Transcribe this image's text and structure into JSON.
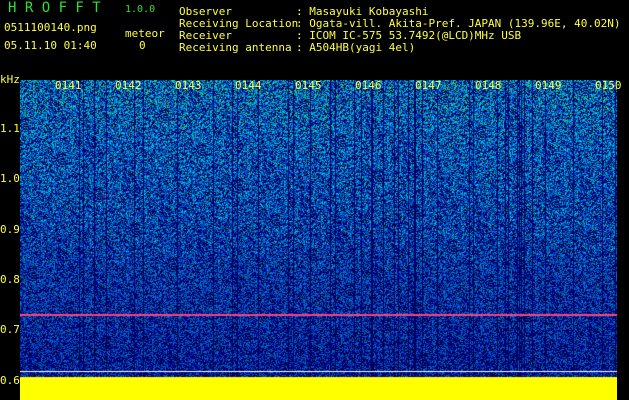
{
  "app": {
    "title": "H R O F F T",
    "version": "1.0.0"
  },
  "file": {
    "name": "0511100140.png",
    "datetime": "05.11.10 01:40"
  },
  "meteor": {
    "label": "meteor",
    "count": "0"
  },
  "info": {
    "observer_label": "Observer",
    "observer": ": Masayuki Kobayashi",
    "location_label": "Receiving Location",
    "location": ": Ogata-vill. Akita-Pref. JAPAN (139.96E, 40.02N)",
    "receiver_label": "Receiver",
    "receiver": ": ICOM IC-575 53.7492(@LCD)MHz USB",
    "antenna_label": "Receiving antenna",
    "antenna": ": A504HB(yagi 4el)"
  },
  "axis": {
    "unit": "kHz",
    "ticks": [
      "1.1",
      "1.0",
      "0.9",
      "0.8",
      "0.7",
      "0.6"
    ],
    "time_labels": [
      "0141",
      "0142",
      "0143",
      "0144",
      "0145",
      "0146",
      "0147",
      "0148",
      "0149",
      "0150"
    ]
  },
  "colors": {
    "signal": "#ff4080",
    "baseline": "#ffff00",
    "background": "#000080"
  }
}
